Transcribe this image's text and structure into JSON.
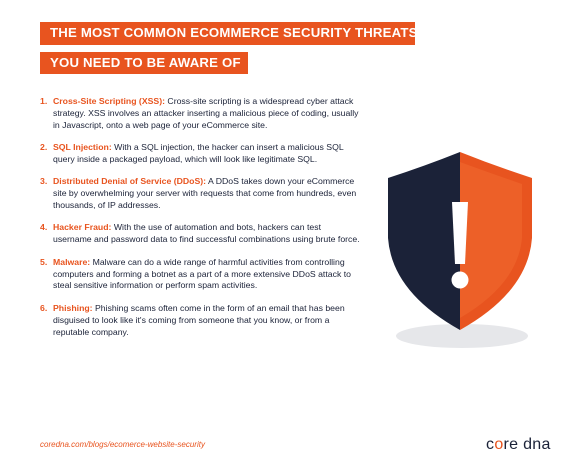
{
  "header": {
    "line1": "THE MOST COMMON ECOMMERCE SECURITY THREATS",
    "line2": "YOU NEED TO BE AWARE OF"
  },
  "items": [
    {
      "num": "1.",
      "term": "Cross-Site Scripting (XSS):",
      "text": " Cross-site scripting is a widespread cyber attack strategy. XSS involves an attacker inserting a malicious piece of coding, usually in Javascript, onto a web page of your eCommerce site."
    },
    {
      "num": "2.",
      "term": "SQL Injection:",
      "text": " With a SQL injection, the hacker can insert a malicious SQL query inside a packaged payload, which will look like legitimate SQL."
    },
    {
      "num": "3.",
      "term": "Distributed Denial of Service (DDoS):",
      "text": " A DDoS takes down your eCommerce site by overwhelming your server with requests that come from hundreds, even thousands, of IP addresses."
    },
    {
      "num": "4.",
      "term": "Hacker Fraud:",
      "text": " With the use of automation and bots, hackers can test username and password data to find successful combinations using brute force."
    },
    {
      "num": "5.",
      "term": "Malware:",
      "text": " Malware can do a wide range of harmful activities from controlling computers and forming a botnet as a part of a more extensive DDoS attack to steal sensitive information or perform spam activities."
    },
    {
      "num": "6.",
      "term": "Phishing:",
      "text": " Phishing scams often come in the form of an email that has been disguised to look like it's coming from someone that you know, or from a reputable company."
    }
  ],
  "footer": {
    "url": "coredna.com/blogs/ecomerce-website-security",
    "logo_pre": "c",
    "logo_o": "o",
    "logo_post": "re dna"
  },
  "colors": {
    "accent": "#e8541f",
    "navy": "#1b2238"
  },
  "illustration": "shield-warning-icon"
}
